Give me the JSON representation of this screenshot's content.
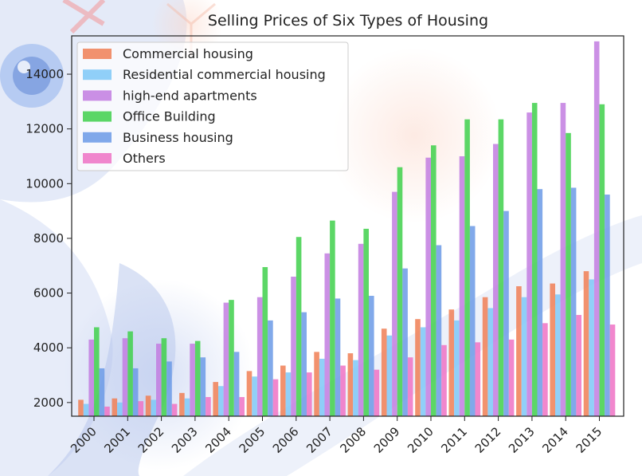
{
  "chart_data": {
    "type": "bar",
    "title": "Selling Prices of Six Types of Housing",
    "xlabel": "",
    "ylabel": "",
    "ylim": [
      1500,
      15400
    ],
    "yticks": [
      2000,
      4000,
      6000,
      8000,
      10000,
      12000,
      14000
    ],
    "ytick_labels": [
      "2000",
      "4000",
      "6000",
      "8000",
      "10000",
      "12000",
      "14000"
    ],
    "categories": [
      "2000",
      "2001",
      "2002",
      "2003",
      "2004",
      "2005",
      "2006",
      "2007",
      "2008",
      "2009",
      "2010",
      "2011",
      "2012",
      "2013",
      "2014",
      "2015"
    ],
    "legend_position": "top-left",
    "series": [
      {
        "name": "Commercial housing",
        "color": "#f07f55",
        "values": [
          2100,
          2150,
          2250,
          2350,
          2750,
          3150,
          3350,
          3850,
          3800,
          4700,
          5050,
          5400,
          5850,
          6250,
          6350,
          6800
        ]
      },
      {
        "name": "Residential commercial housing",
        "color": "#7ec8f7",
        "values": [
          1950,
          2000,
          2100,
          2150,
          2600,
          2950,
          3100,
          3600,
          3550,
          4450,
          4750,
          5000,
          5450,
          5850,
          5950,
          6500
        ]
      },
      {
        "name": "high-end apartments",
        "color": "#c27de0",
        "values": [
          4300,
          4350,
          4150,
          4150,
          5650,
          5850,
          6600,
          7450,
          7800,
          9700,
          10950,
          11000,
          11450,
          12600,
          12950,
          15200
        ]
      },
      {
        "name": "Office Building",
        "color": "#3fd04b",
        "values": [
          4750,
          4600,
          4350,
          4250,
          5750,
          6950,
          8050,
          8650,
          8350,
          10600,
          11400,
          12350,
          12350,
          12950,
          11850,
          12900
        ]
      },
      {
        "name": "Business housing",
        "color": "#6b9ae6",
        "values": [
          3250,
          3250,
          3500,
          3650,
          3850,
          5000,
          5300,
          5800,
          5900,
          6900,
          7750,
          8450,
          9000,
          9800,
          9850,
          9600
        ]
      },
      {
        "name": "Others",
        "color": "#ee72c4",
        "values": [
          1850,
          2050,
          1950,
          2200,
          2200,
          2850,
          3100,
          3350,
          3200,
          3650,
          4100,
          4200,
          4300,
          4900,
          5200,
          4850
        ]
      }
    ]
  }
}
